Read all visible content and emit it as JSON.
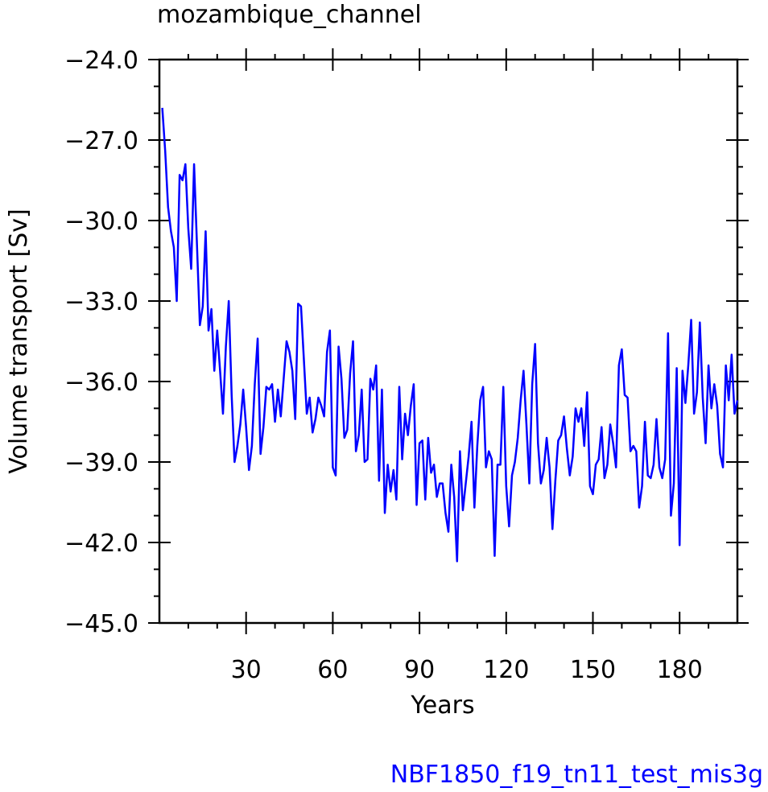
{
  "chart_data": {
    "type": "line",
    "title": "mozambique_channel",
    "xlabel": "Years",
    "ylabel": "Volume transport  [Sv]",
    "footer": "NBF1850_f19_tn11_test_mis3g",
    "xlim": [
      0,
      200
    ],
    "ylim": [
      -45.0,
      -24.0
    ],
    "x_ticks": [
      30,
      60,
      90,
      120,
      150,
      180
    ],
    "x_tick_labels": [
      "30",
      "60",
      "90",
      "120",
      "150",
      "180"
    ],
    "y_ticks": [
      -24.0,
      -27.0,
      -30.0,
      -33.0,
      -36.0,
      -39.0,
      -42.0,
      -45.0
    ],
    "y_tick_labels": [
      "−24.0",
      "−27.0",
      "−30.0",
      "−33.0",
      "−36.0",
      "−39.0",
      "−42.0",
      "−45.0"
    ],
    "grid": false,
    "line_color": "#0000ff",
    "footer_color": "#0000ff",
    "series": [
      {
        "color": "#0000ff",
        "x_start": 1,
        "values": [
          -25.8,
          -27.4,
          -29.5,
          -30.4,
          -31.0,
          -33.0,
          -28.3,
          -28.5,
          -27.9,
          -30.3,
          -31.8,
          -27.9,
          -30.9,
          -33.9,
          -33.2,
          -30.4,
          -34.1,
          -33.3,
          -35.6,
          -34.1,
          -35.6,
          -37.2,
          -34.7,
          -33.0,
          -36.5,
          -39.0,
          -38.4,
          -37.6,
          -36.3,
          -37.7,
          -39.3,
          -38.4,
          -36.1,
          -34.4,
          -38.7,
          -37.7,
          -36.2,
          -36.3,
          -36.1,
          -37.5,
          -36.3,
          -37.3,
          -35.9,
          -34.5,
          -34.9,
          -35.6,
          -37.4,
          -33.1,
          -33.2,
          -35.2,
          -37.2,
          -36.6,
          -37.9,
          -37.4,
          -36.6,
          -36.9,
          -37.3,
          -34.9,
          -34.1,
          -39.2,
          -39.5,
          -34.7,
          -35.9,
          -38.1,
          -37.8,
          -35.7,
          -34.5,
          -38.6,
          -38.0,
          -36.3,
          -39.0,
          -38.9,
          -35.9,
          -36.3,
          -35.4,
          -39.7,
          -36.3,
          -40.9,
          -39.1,
          -40.1,
          -39.3,
          -40.4,
          -36.2,
          -38.9,
          -37.2,
          -38.0,
          -36.9,
          -36.1,
          -40.6,
          -38.3,
          -38.2,
          -40.4,
          -38.1,
          -39.4,
          -39.1,
          -40.3,
          -39.8,
          -39.8,
          -40.9,
          -41.6,
          -39.1,
          -40.3,
          -42.7,
          -38.6,
          -40.8,
          -39.8,
          -38.8,
          -37.5,
          -40.7,
          -38.4,
          -36.7,
          -36.2,
          -39.2,
          -38.6,
          -38.9,
          -42.5,
          -39.1,
          -39.1,
          -36.2,
          -39.9,
          -41.4,
          -39.5,
          -39.0,
          -38.1,
          -36.7,
          -35.6,
          -37.6,
          -39.8,
          -36.1,
          -34.6,
          -38.3,
          -39.8,
          -39.3,
          -38.1,
          -39.2,
          -41.5,
          -39.7,
          -38.2,
          -38.0,
          -37.3,
          -38.5,
          -39.5,
          -38.8,
          -37.0,
          -37.5,
          -37.0,
          -38.4,
          -36.4,
          -39.9,
          -40.2,
          -39.1,
          -38.9,
          -37.7,
          -39.6,
          -39.1,
          -37.6,
          -38.3,
          -39.2,
          -35.4,
          -34.8,
          -36.5,
          -36.6,
          -38.6,
          -38.4,
          -38.6,
          -40.7,
          -39.9,
          -37.5,
          -39.5,
          -39.6,
          -39.1,
          -37.4,
          -39.2,
          -39.6,
          -38.9,
          -34.2,
          -41.0,
          -39.8,
          -35.5,
          -42.1,
          -35.6,
          -36.8,
          -35.4,
          -33.7,
          -37.2,
          -36.4,
          -33.8,
          -36.6,
          -38.3,
          -35.4,
          -37.0,
          -36.1,
          -36.9,
          -38.7,
          -39.2,
          -35.4,
          -36.7,
          -35.0,
          -37.2,
          -36.7
        ]
      }
    ]
  }
}
